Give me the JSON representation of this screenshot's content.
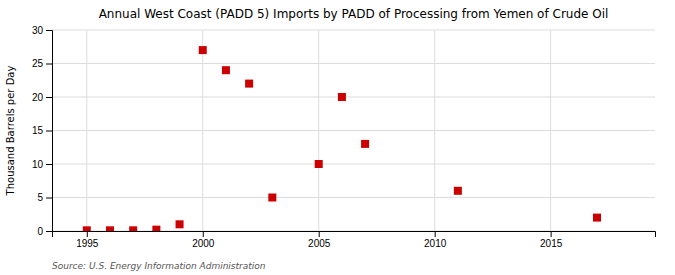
{
  "chart_data": {
    "type": "scatter",
    "title": "Annual West Coast (PADD 5) Imports by PADD of Processing from Yemen of Crude Oil",
    "ylabel": "Thousand Barrels per Day",
    "annotations": [
      "Source: U.S. Energy Information Administration"
    ],
    "x": [
      1995,
      1996,
      1997,
      1998,
      1999,
      2000,
      2001,
      2002,
      2003,
      2005,
      2006,
      2007,
      2011,
      2017
    ],
    "values": [
      0.1,
      0.1,
      0.1,
      0.2,
      1.0,
      27.0,
      24.0,
      22.0,
      5.0,
      10.0,
      20.0,
      13.0,
      6.0,
      2.0
    ],
    "color": "#cc0000",
    "marker": "square",
    "xlim": [
      1993.5,
      2019.5
    ],
    "ylim": [
      0,
      30
    ],
    "xticks": [
      1995,
      2000,
      2005,
      2010,
      2015
    ],
    "yticks": [
      0,
      5,
      10,
      15,
      20,
      25,
      30
    ],
    "grid": true
  }
}
